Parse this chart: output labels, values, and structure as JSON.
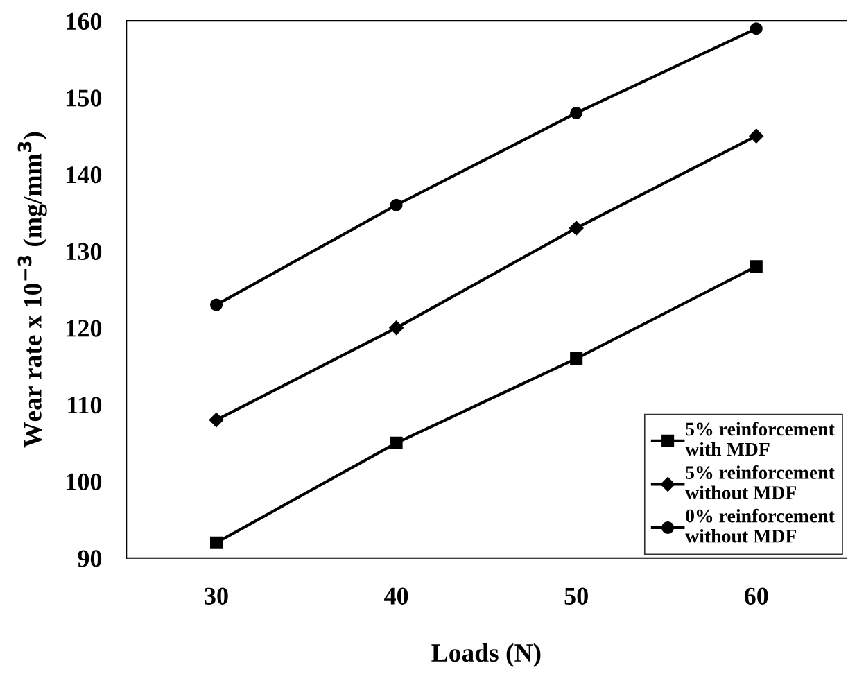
{
  "chart_data": {
    "type": "line",
    "xlabel": "Loads (N)",
    "ylabel": "Wear rate x 10$^{−3}$ (mg/mm$^{3}$)",
    "categories": [
      "30",
      "40",
      "50",
      "60"
    ],
    "ylim": [
      90,
      160
    ],
    "yticks": [
      90,
      100,
      110,
      120,
      130,
      140,
      150,
      160
    ],
    "grid": false,
    "legend": "bottom right",
    "line_style": "solid",
    "series": [
      {
        "name": "5% reinforcement\nwith MDF",
        "color": "#000000",
        "marker": "square",
        "values": [
          92,
          105,
          116,
          128
        ]
      },
      {
        "name": "5% reinforcement\nwithout MDF",
        "color": "#000000",
        "marker": "diamond",
        "values": [
          108,
          120,
          133,
          145
        ]
      },
      {
        "name": "0% reinforcement\nwithout MDF",
        "color": "#000000",
        "marker": "circle",
        "values": [
          123,
          136,
          148,
          159
        ]
      }
    ]
  }
}
